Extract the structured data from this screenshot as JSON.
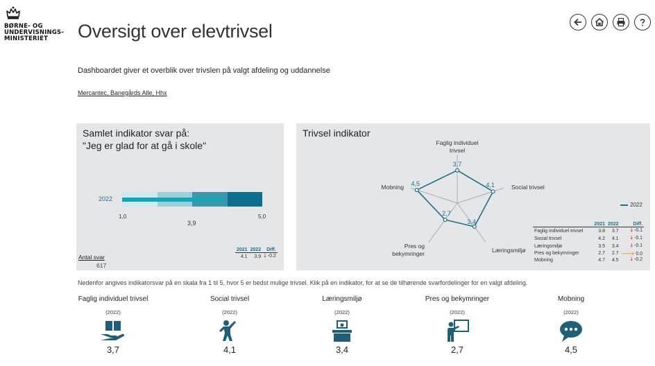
{
  "header": {
    "logo_text": "BØRNE- OG\nUNDERVISNINGS-\nMINISTERIET",
    "title": "Oversigt over elevtrivsel",
    "nav_icons": [
      "back-icon",
      "home-icon",
      "print-icon",
      "help-icon"
    ]
  },
  "intro": {
    "subtitle": "Dashboardet giver et overblik over trivslen på valgt afdeling og uddannelse",
    "unit": "Mercantec, Banegårds Alle, Hhx"
  },
  "left_panel": {
    "title_line1": "Samlet indikator svar på:",
    "title_line2": "\"Jeg er glad for at gå i skole\"",
    "bar": {
      "year": "2022",
      "min_label": "1,0",
      "max_label": "5,0",
      "value_label": "3,9",
      "value": 3.9,
      "range": [
        1.0,
        5.0
      ],
      "band_colors": [
        "#cfe9ee",
        "#9ccfd9",
        "#3d96ac",
        "#0e6f8e"
      ],
      "marker_color": "#13a6b5"
    },
    "count_label": "Antal svar",
    "count_value": "617",
    "table": {
      "headers": [
        "2021",
        "2022",
        "Diff."
      ],
      "row": {
        "y2021": "4.1",
        "y2022": "3.9",
        "arrow": "down",
        "diff": "-0.2"
      }
    }
  },
  "right_panel": {
    "title": "Trivsel indikator",
    "legend_label": "2022",
    "series_color": "#1f6f86",
    "axes": [
      {
        "label_line1": "Faglig individuel",
        "label_line2": "trivsel",
        "value_label": "3,7"
      },
      {
        "label_line1": "Social trivsel",
        "label_line2": "",
        "value_label": "4,1"
      },
      {
        "label_line1": "Læringsmiljø",
        "label_line2": "",
        "value_label": "3,4"
      },
      {
        "label_line1": "Pres og",
        "label_line2": "bekymringer",
        "value_label": "2,7"
      },
      {
        "label_line1": "Mobning",
        "label_line2": "",
        "value_label": "4,5"
      }
    ],
    "table": {
      "headers": [
        "2021",
        "2022",
        "Diff."
      ],
      "rows": [
        {
          "name": "Faglig individuel trivsel",
          "y2021": "3.8",
          "y2022": "3.7",
          "arrow": "down",
          "diff": "-0.1"
        },
        {
          "name": "Social trivsel",
          "y2021": "4.2",
          "y2022": "4.1",
          "arrow": "down",
          "diff": "-0.1"
        },
        {
          "name": "Læringsmiljø",
          "y2021": "3.5",
          "y2022": "3.4",
          "arrow": "down",
          "diff": "-0.1"
        },
        {
          "name": "Pres og bekymringer",
          "y2021": "2.7",
          "y2022": "2.7",
          "arrow": "right",
          "diff": "0.0"
        },
        {
          "name": "Mobning",
          "y2021": "4.7",
          "y2022": "4.5",
          "arrow": "down",
          "diff": "-0.2"
        }
      ]
    }
  },
  "chart_data": {
    "type": "radar",
    "categories": [
      "Faglig individuel trivsel",
      "Social trivsel",
      "Læringsmiljø",
      "Pres og bekymringer",
      "Mobning"
    ],
    "series": [
      {
        "name": "2022",
        "values": [
          3.7,
          4.1,
          3.4,
          2.7,
          4.5
        ]
      }
    ],
    "range": [
      1,
      5
    ]
  },
  "note": "Nedenfor angives indikatorsvar på en skala fra 1 til 5, hvor 5 er bedst mulige trivsel. Klik på en indikator, for at se de tilhørende svarfordelinger for en valgt afdeling.",
  "indicators": [
    {
      "name": "Faglig individuel trivsel",
      "year": "(2022)",
      "value": "3,7",
      "icon": "book-hand-icon"
    },
    {
      "name": "Social trivsel",
      "year": "(2022)",
      "value": "4,1",
      "icon": "cheering-person-icon"
    },
    {
      "name": "Læringsmiljø",
      "year": "(2022)",
      "value": "3,4",
      "icon": "desk-student-icon"
    },
    {
      "name": "Pres og bekymringer",
      "year": "(2022)",
      "value": "2,7",
      "icon": "teacher-board-icon"
    },
    {
      "name": "Mobning",
      "year": "(2022)",
      "value": "4,5",
      "icon": "speech-bubble-icon"
    }
  ],
  "colors": {
    "panel_bg": "#e4e6e8",
    "accent": "#1f6f86",
    "icon": "#1f5f78",
    "down": "#d0342c",
    "flat": "#e89a26"
  }
}
